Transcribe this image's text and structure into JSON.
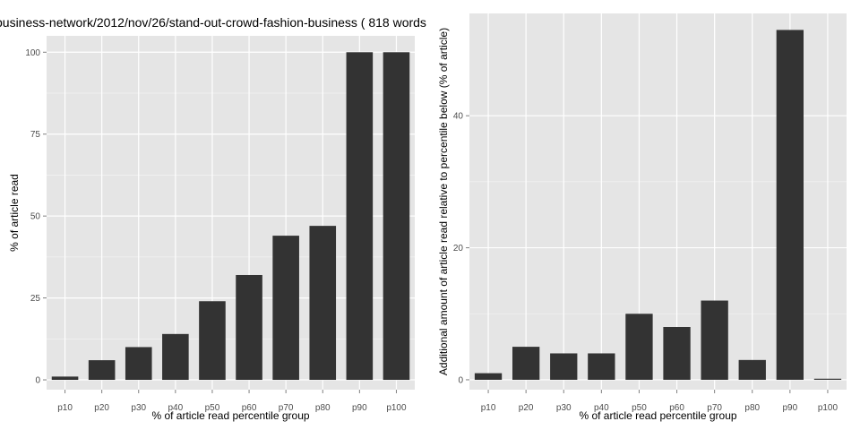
{
  "chart_data": [
    {
      "type": "bar",
      "title": "business-network/2012/nov/26/stand-out-crowd-fashion-business ( 818 words",
      "xlabel": "% of article read percentile group",
      "ylabel": "% of article read",
      "categories": [
        "p10",
        "p20",
        "p30",
        "p40",
        "p50",
        "p60",
        "p70",
        "p80",
        "p90",
        "p100"
      ],
      "values": [
        1,
        6,
        10,
        14,
        24,
        32,
        44,
        47,
        100,
        100
      ],
      "ylim": [
        -3,
        105
      ],
      "yticks": [
        0,
        25,
        50,
        75,
        100
      ],
      "grid": true,
      "bar_color": "#333333",
      "panel_color": "#e5e5e5"
    },
    {
      "type": "bar",
      "title": "",
      "xlabel": "% of article read percentile group",
      "ylabel": "Additional amount of article read relative to percentile below (% of article)",
      "categories": [
        "p10",
        "p20",
        "p30",
        "p40",
        "p50",
        "p60",
        "p70",
        "p80",
        "p90",
        "p100"
      ],
      "values": [
        1,
        5,
        4,
        4,
        10,
        8,
        12,
        3,
        53,
        0
      ],
      "ylim": [
        -1.5,
        55.5
      ],
      "yticks": [
        0,
        20,
        40
      ],
      "grid": true,
      "bar_color": "#333333",
      "panel_color": "#e5e5e5"
    }
  ]
}
